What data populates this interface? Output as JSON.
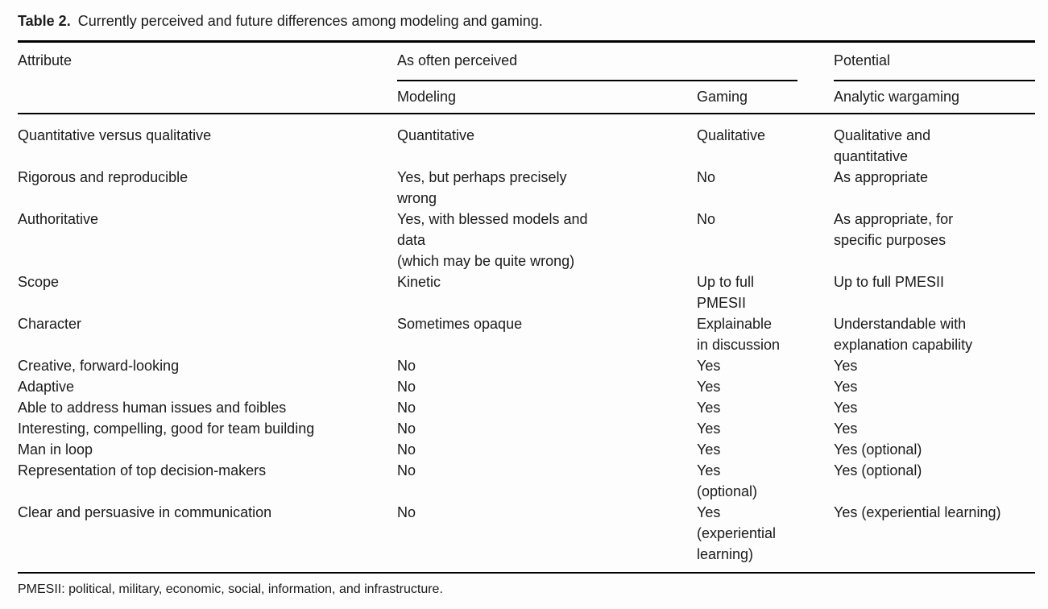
{
  "table": {
    "title_label": "Table 2.",
    "title_text": "Currently perceived and future differences among modeling and gaming.",
    "header": {
      "attribute": "Attribute",
      "group_perceived": "As often perceived",
      "group_potential": "Potential",
      "col_modeling": "Modeling",
      "col_gaming": "Gaming",
      "col_wargaming": "Analytic wargaming"
    },
    "rows": [
      {
        "attribute": "Quantitative versus qualitative",
        "modeling": "Quantitative",
        "gaming": "Qualitative",
        "potential": "Qualitative and\nquantitative"
      },
      {
        "attribute": "Rigorous and reproducible",
        "modeling": "Yes, but perhaps precisely\nwrong",
        "gaming": "No",
        "potential": "As appropriate"
      },
      {
        "attribute": "Authoritative",
        "modeling": "Yes, with blessed models and\ndata\n(which may be quite wrong)",
        "gaming": "No",
        "potential": "As appropriate, for\nspecific purposes"
      },
      {
        "attribute": "Scope",
        "modeling": "Kinetic",
        "gaming": "Up to full\nPMESII",
        "potential": "Up to full PMESII"
      },
      {
        "attribute": "Character",
        "modeling": "Sometimes opaque",
        "gaming": "Explainable\nin discussion",
        "potential": "Understandable with\nexplanation capability"
      },
      {
        "attribute": "Creative, forward-looking",
        "modeling": "No",
        "gaming": "Yes",
        "potential": "Yes"
      },
      {
        "attribute": "Adaptive",
        "modeling": "No",
        "gaming": "Yes",
        "potential": "Yes"
      },
      {
        "attribute": "Able to address human issues and foibles",
        "modeling": "No",
        "gaming": "Yes",
        "potential": "Yes"
      },
      {
        "attribute": "Interesting, compelling, good for team building",
        "modeling": "No",
        "gaming": "Yes",
        "potential": "Yes"
      },
      {
        "attribute": "Man in loop",
        "modeling": "No",
        "gaming": "Yes",
        "potential": "Yes (optional)"
      },
      {
        "attribute": "Representation of top decision-makers",
        "modeling": "No",
        "gaming": "Yes\n(optional)",
        "potential": "Yes (optional)"
      },
      {
        "attribute": "Clear and persuasive in communication",
        "modeling": "No",
        "gaming": "Yes\n(experiential\nlearning)",
        "potential": "Yes (experiential learning)"
      }
    ],
    "footnote": "PMESII: political, military, economic, social, information, and infrastructure."
  },
  "colors": {
    "text": "#1b1b1b",
    "rule": "#000000",
    "background": "#fdfdfd"
  }
}
